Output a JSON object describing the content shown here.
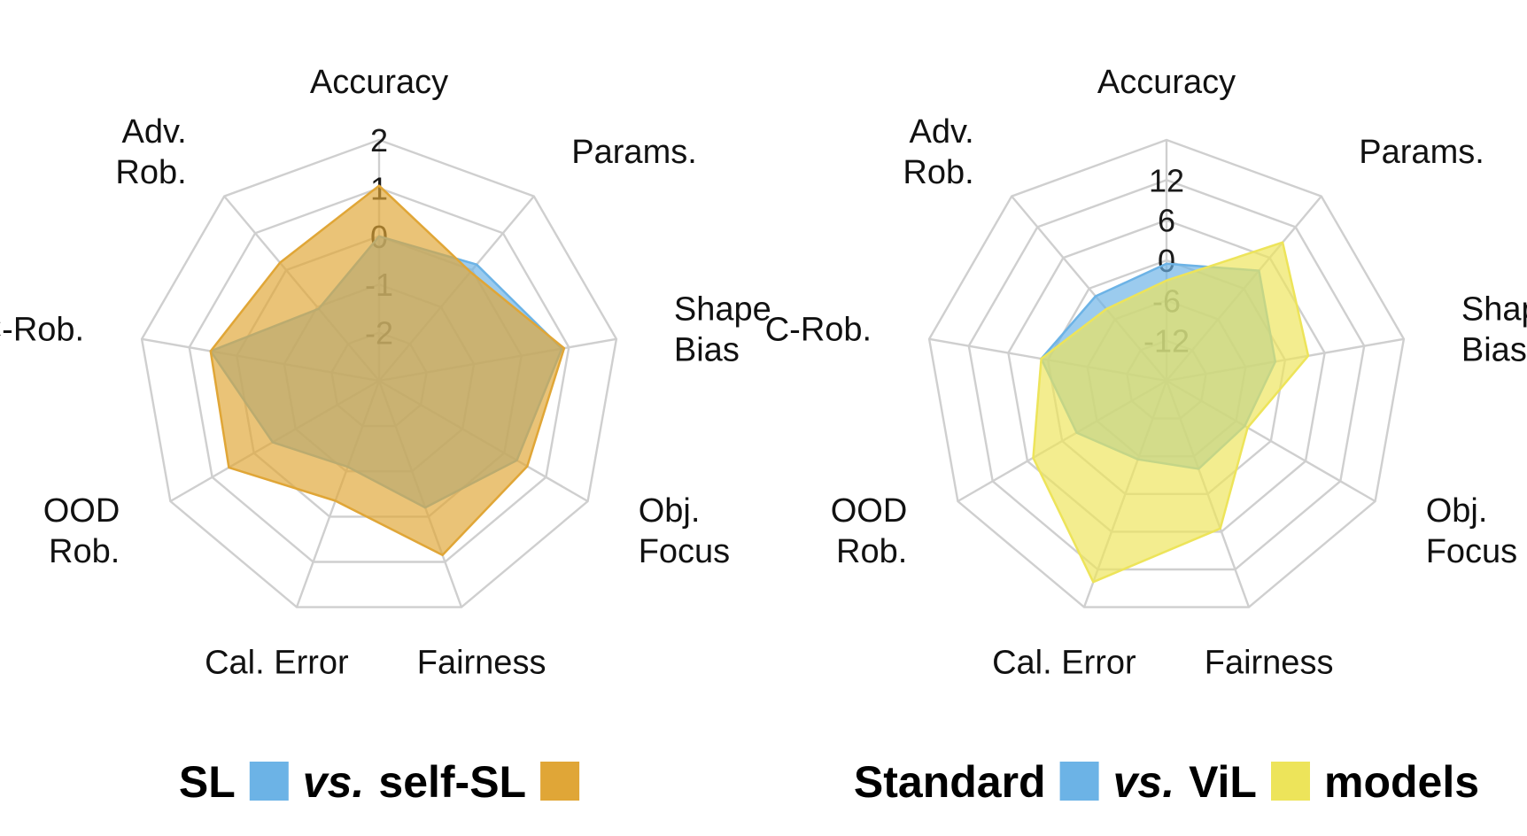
{
  "chart_data": [
    {
      "type": "radar",
      "title": "",
      "axes": [
        "Accuracy",
        "Params.",
        "Shape Bias",
        "Obj. Focus",
        "Fairness",
        "Cal. Error",
        "OOD Rob.",
        "C-Rob.",
        "Adv. Rob."
      ],
      "rlim": [
        -3,
        2
      ],
      "ticks": [
        -2,
        -1,
        0,
        1,
        2
      ],
      "tick_labels": [
        "-2",
        "-1",
        "0",
        "1",
        "2"
      ],
      "grid": true,
      "series": [
        {
          "name": "SL",
          "color": "#6cb3e6",
          "values": [
            0.0,
            0.15,
            0.85,
            0.3,
            -0.2,
            -1.1,
            -0.45,
            0.55,
            -1.05
          ]
        },
        {
          "name": "self-SL",
          "color": "#e0a637",
          "values": [
            1.05,
            -0.05,
            0.9,
            0.55,
            0.85,
            -0.35,
            0.6,
            0.55,
            0.2
          ]
        }
      ],
      "legend": {
        "position": "bottom",
        "parts": [
          {
            "text": "SL",
            "italic": false
          },
          {
            "swatch": "#6cb3e6"
          },
          {
            "text": "vs.",
            "italic": true
          },
          {
            "text": "self-SL",
            "italic": false
          },
          {
            "swatch": "#e0a637"
          }
        ]
      }
    },
    {
      "type": "radar",
      "title": "",
      "axes": [
        "Accuracy",
        "Params.",
        "Shape Bias",
        "Obj. Focus",
        "Fairness",
        "Cal. Error",
        "OOD Rob.",
        "C-Rob.",
        "Adv. Rob."
      ],
      "rlim": [
        -18,
        18
      ],
      "ticks": [
        -12,
        -6,
        0,
        6,
        12
      ],
      "tick_labels": [
        "-12",
        "-6",
        "0",
        "6",
        "12"
      ],
      "grid": true,
      "series": [
        {
          "name": "Standard",
          "color": "#6cb3e6",
          "values": [
            -0.5,
            3.5,
            -1.5,
            -4.5,
            -4.0,
            -5.5,
            -2.5,
            1.0,
            -1.5
          ]
        },
        {
          "name": "ViL",
          "color": "#ede45a",
          "values": [
            -3.0,
            9.0,
            3.5,
            -4.0,
            5.5,
            14.0,
            5.0,
            1.0,
            -4.0
          ]
        }
      ],
      "legend": {
        "position": "bottom",
        "parts": [
          {
            "text": "Standard",
            "italic": false
          },
          {
            "swatch": "#6cb3e6"
          },
          {
            "text": "vs.",
            "italic": true
          },
          {
            "text": "ViL",
            "italic": false
          },
          {
            "swatch": "#ede45a"
          },
          {
            "text": "models",
            "italic": false
          }
        ]
      }
    }
  ]
}
